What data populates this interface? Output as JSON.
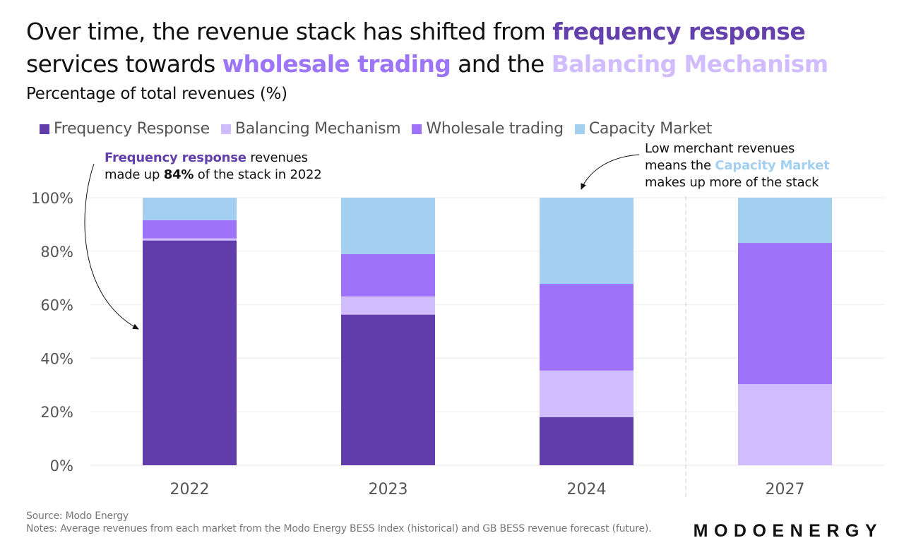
{
  "title": {
    "parts": [
      {
        "text": "Over time, the revenue stack has shifted from ",
        "color": null
      },
      {
        "text": "frequency response",
        "color": "#6340ac"
      },
      {
        "text": " services towards ",
        "color": null
      },
      {
        "text": "wholesale trading",
        "color": "#9d75f8"
      },
      {
        "text": " and the ",
        "color": null
      },
      {
        "text": "Balancing Mechanism",
        "color": "#d0bcff"
      }
    ]
  },
  "chart_data": {
    "type": "bar",
    "stacked": true,
    "title": "Over time, the revenue stack has shifted from frequency response services towards wholesale trading and the Balancing Mechanism",
    "subtitle": "Percentage of total revenues (%)",
    "xlabel": "",
    "ylabel": "Percentage of total revenues (%)",
    "categories": [
      "2022",
      "2023",
      "2024",
      "2027"
    ],
    "ylim": [
      0,
      100
    ],
    "yticks": [
      0,
      20,
      40,
      60,
      80,
      100
    ],
    "ytick_labels": [
      "0%",
      "20%",
      "40%",
      "60%",
      "80%",
      "100%"
    ],
    "grid": true,
    "legend_position": "top-left",
    "divider_between": [
      "2024",
      "2027"
    ],
    "series": [
      {
        "name": "Frequency Response",
        "color": "#613dab",
        "values": [
          84.0,
          56.3,
          18.0,
          0.0
        ]
      },
      {
        "name": "Balancing Mechanism",
        "color": "#d1bcfd",
        "values": [
          0.8,
          6.8,
          17.4,
          30.3
        ]
      },
      {
        "name": "Wholesale trading",
        "color": "#9f73f9",
        "values": [
          6.8,
          15.8,
          32.4,
          52.8
        ]
      },
      {
        "name": "Capacity Market",
        "color": "#a3cff1",
        "values": [
          8.4,
          21.1,
          32.2,
          16.9
        ]
      }
    ],
    "annotations": [
      {
        "text": "Frequency response revenues made up 84% of the stack in 2022",
        "target": "2022"
      },
      {
        "text": "Low merchant revenues means the Capacity Market makes up more of the stack",
        "target": "2024"
      }
    ]
  },
  "subtitle": "Percentage of total revenues (%)",
  "annotations": {
    "left": {
      "hl": "Frequency response",
      "t1": " revenues",
      "t2": "made up ",
      "bold": "84%",
      "t3": " of the stack in 2022"
    },
    "right": {
      "l1": "Low merchant revenues",
      "t2": "means the ",
      "hl": "Capacity Market",
      "l3": "makes up more of the stack"
    }
  },
  "footer": {
    "source": "Source: Modo Energy",
    "notes": "Notes: Average revenues from each market from the Modo Energy BESS Index (historical) and GB BESS revenue forecast (future)."
  },
  "logo": "MODOENERGY"
}
